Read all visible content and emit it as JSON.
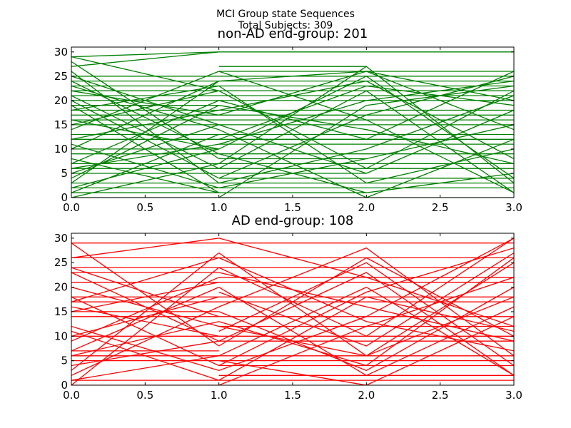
{
  "figure": {
    "suptitle_line1": "MCI Group state Sequences",
    "suptitle_line2": "Total Subjects: 309"
  },
  "chart_data": [
    {
      "type": "line",
      "title": "non-AD end-group: 201",
      "color": "#008000",
      "xlim": [
        0,
        3
      ],
      "ylim": [
        0,
        31
      ],
      "xticks": [
        "0.0",
        "0.5",
        "1.0",
        "1.5",
        "2.0",
        "2.5",
        "3.0"
      ],
      "xtick_values": [
        0,
        0.5,
        1,
        1.5,
        2,
        2.5,
        3
      ],
      "yticks": [
        "0",
        "5",
        "10",
        "15",
        "20",
        "25",
        "30"
      ],
      "ytick_values": [
        0,
        5,
        10,
        15,
        20,
        25,
        30
      ],
      "sequences": [
        [
          0,
          29,
          1,
          30
        ],
        [
          0,
          27,
          1,
          30
        ],
        [
          0,
          25,
          1,
          25
        ],
        [
          0,
          24,
          1,
          24
        ],
        [
          0,
          23,
          1,
          23
        ],
        [
          0,
          22,
          1,
          22
        ],
        [
          0,
          21,
          1,
          21
        ],
        [
          0,
          20,
          1,
          20
        ],
        [
          0,
          19,
          1,
          19
        ],
        [
          0,
          18,
          1,
          18
        ],
        [
          0,
          17,
          1,
          17
        ],
        [
          0,
          16,
          1,
          16
        ],
        [
          0,
          15,
          1,
          15
        ],
        [
          0,
          13,
          1,
          13
        ],
        [
          0,
          12,
          1,
          12
        ],
        [
          0,
          10,
          1,
          10
        ],
        [
          0,
          9,
          1,
          9
        ],
        [
          0,
          7,
          1,
          7
        ],
        [
          0,
          6,
          1,
          6
        ],
        [
          0,
          5,
          1,
          5
        ],
        [
          0,
          3,
          1,
          3
        ],
        [
          0,
          2,
          1,
          2
        ],
        [
          0,
          1,
          1,
          1
        ],
        [
          0,
          0,
          1,
          0
        ],
        [
          0,
          29,
          1,
          22
        ],
        [
          0,
          28,
          1,
          8
        ],
        [
          0,
          25,
          1,
          15
        ],
        [
          0,
          24,
          1,
          9
        ],
        [
          0,
          23,
          1,
          14
        ],
        [
          0,
          22,
          1,
          17
        ],
        [
          0,
          20,
          1,
          4
        ],
        [
          0,
          18,
          1,
          23
        ],
        [
          0,
          16,
          1,
          10
        ],
        [
          0,
          15,
          1,
          22
        ],
        [
          0,
          12,
          1,
          18
        ],
        [
          0,
          10,
          1,
          24
        ],
        [
          0,
          8,
          1,
          1
        ],
        [
          0,
          7,
          1,
          20
        ],
        [
          0,
          6,
          1,
          11
        ],
        [
          0,
          5,
          1,
          15
        ],
        [
          0,
          3,
          1,
          24
        ],
        [
          0,
          2,
          1,
          10
        ],
        [
          0,
          1,
          1,
          13
        ],
        [
          0,
          0,
          1,
          7
        ],
        [
          0,
          26,
          1,
          3
        ],
        [
          0,
          21,
          1,
          6
        ],
        [
          0,
          19,
          1,
          1
        ],
        [
          0,
          14,
          1,
          26
        ],
        [
          0,
          11,
          1,
          2
        ],
        [
          0,
          4,
          1,
          19
        ],
        [
          1,
          30,
          2,
          30,
          3,
          30
        ],
        [
          1,
          26,
          2,
          26,
          3,
          26
        ],
        [
          1,
          25,
          2,
          25,
          3,
          25
        ],
        [
          1,
          24,
          2,
          24,
          3,
          24
        ],
        [
          1,
          23,
          2,
          23,
          3,
          23
        ],
        [
          1,
          22,
          2,
          22,
          3,
          22
        ],
        [
          1,
          21,
          2,
          21,
          3,
          21
        ],
        [
          1,
          20,
          2,
          20,
          3,
          20
        ],
        [
          1,
          18,
          2,
          18,
          3,
          18
        ],
        [
          1,
          17,
          2,
          17,
          3,
          17
        ],
        [
          1,
          16,
          2,
          16,
          3,
          16
        ],
        [
          1,
          15,
          2,
          15,
          3,
          15
        ],
        [
          1,
          13,
          2,
          13,
          3,
          13
        ],
        [
          1,
          12,
          2,
          12,
          3,
          12
        ],
        [
          1,
          11,
          2,
          11,
          3,
          11
        ],
        [
          1,
          9,
          2,
          9,
          3,
          9
        ],
        [
          1,
          7,
          2,
          7,
          3,
          7
        ],
        [
          1,
          6,
          2,
          6,
          3,
          6
        ],
        [
          1,
          4,
          2,
          4,
          3,
          4
        ],
        [
          1,
          3,
          2,
          3,
          3,
          3
        ],
        [
          1,
          2,
          2,
          2,
          3,
          2
        ],
        [
          1,
          0,
          2,
          0,
          3,
          0
        ],
        [
          1,
          27,
          2,
          27
        ],
        [
          1,
          8,
          2,
          8
        ],
        [
          1,
          5,
          2,
          5
        ],
        [
          1,
          1,
          2,
          1
        ],
        [
          1,
          24,
          2,
          26,
          3,
          20
        ],
        [
          1,
          22,
          2,
          6,
          3,
          22
        ],
        [
          1,
          20,
          2,
          12,
          3,
          26
        ],
        [
          1,
          17,
          2,
          26,
          3,
          14
        ],
        [
          1,
          14,
          2,
          0,
          3,
          12
        ],
        [
          1,
          10,
          2,
          25,
          3,
          4
        ],
        [
          1,
          6,
          2,
          22,
          3,
          1
        ],
        [
          1,
          4,
          2,
          17,
          3,
          25
        ],
        [
          1,
          2,
          2,
          8,
          3,
          15
        ],
        [
          1,
          0,
          2,
          19,
          3,
          23
        ],
        [
          1,
          23,
          2,
          3,
          3,
          10
        ],
        [
          1,
          19,
          2,
          14,
          3,
          7
        ],
        [
          1,
          12,
          2,
          23,
          3,
          19
        ],
        [
          1,
          9,
          2,
          1,
          3,
          5
        ],
        [
          1,
          15,
          2,
          5,
          3,
          18
        ],
        [
          1,
          26,
          2,
          16,
          3,
          1
        ],
        [
          1,
          3,
          2,
          10,
          3,
          21
        ],
        [
          1,
          18,
          2,
          24,
          3,
          8
        ],
        [
          1,
          7,
          2,
          27,
          3,
          3
        ],
        [
          1,
          11,
          2,
          20,
          3,
          24
        ]
      ]
    },
    {
      "type": "line",
      "title": "AD end-group: 108",
      "color": "#ff0000",
      "xlim": [
        0,
        3
      ],
      "ylim": [
        0,
        31
      ],
      "xticks": [
        "0.0",
        "0.5",
        "1.0",
        "1.5",
        "2.0",
        "2.5",
        "3.0"
      ],
      "xtick_values": [
        0,
        0.5,
        1,
        1.5,
        2,
        2.5,
        3
      ],
      "yticks": [
        "0",
        "5",
        "10",
        "15",
        "20",
        "25",
        "30"
      ],
      "ytick_values": [
        0,
        5,
        10,
        15,
        20,
        25,
        30
      ],
      "sequences": [
        [
          0,
          29,
          1,
          29
        ],
        [
          0,
          26,
          1,
          26
        ],
        [
          0,
          24,
          1,
          24
        ],
        [
          0,
          23,
          1,
          23
        ],
        [
          0,
          21,
          1,
          21
        ],
        [
          0,
          18,
          1,
          18
        ],
        [
          0,
          17,
          1,
          17
        ],
        [
          0,
          15,
          1,
          15
        ],
        [
          0,
          14,
          1,
          14
        ],
        [
          0,
          10,
          1,
          10
        ],
        [
          0,
          7,
          1,
          7
        ],
        [
          0,
          6,
          1,
          6
        ],
        [
          0,
          5,
          1,
          5
        ],
        [
          0,
          1,
          1,
          1
        ],
        [
          0,
          0,
          1,
          0
        ],
        [
          0,
          29,
          1,
          8
        ],
        [
          0,
          26,
          1,
          30
        ],
        [
          0,
          24,
          1,
          14
        ],
        [
          0,
          23,
          1,
          9
        ],
        [
          0,
          18,
          1,
          4
        ],
        [
          0,
          17,
          1,
          26
        ],
        [
          0,
          16,
          1,
          10
        ],
        [
          0,
          15,
          1,
          21
        ],
        [
          0,
          12,
          1,
          3
        ],
        [
          0,
          10,
          1,
          18
        ],
        [
          0,
          7,
          1,
          20
        ],
        [
          0,
          6,
          1,
          13
        ],
        [
          0,
          2,
          1,
          16
        ],
        [
          0,
          1,
          1,
          6
        ],
        [
          0,
          0,
          1,
          24
        ],
        [
          0,
          20,
          1,
          12
        ],
        [
          0,
          11,
          1,
          1
        ],
        [
          0,
          9,
          1,
          22
        ],
        [
          0,
          4,
          1,
          9
        ],
        [
          0,
          3,
          1,
          27
        ],
        [
          1,
          29,
          2,
          29,
          3,
          29
        ],
        [
          1,
          26,
          2,
          26,
          3,
          26
        ],
        [
          1,
          24,
          2,
          24,
          3,
          24
        ],
        [
          1,
          22,
          2,
          22,
          3,
          22
        ],
        [
          1,
          21,
          2,
          21,
          3,
          21
        ],
        [
          1,
          18,
          2,
          18,
          3,
          18
        ],
        [
          1,
          17,
          2,
          17,
          3,
          17
        ],
        [
          1,
          14,
          2,
          14,
          3,
          14
        ],
        [
          1,
          12,
          2,
          12,
          3,
          12
        ],
        [
          1,
          10,
          2,
          10,
          3,
          10
        ],
        [
          1,
          9,
          2,
          9,
          3,
          9
        ],
        [
          1,
          6,
          2,
          6,
          3,
          6
        ],
        [
          1,
          5,
          2,
          5,
          3,
          5
        ],
        [
          1,
          4,
          2,
          4,
          3,
          4
        ],
        [
          1,
          2,
          2,
          2,
          3,
          2
        ],
        [
          1,
          1,
          2,
          1,
          3,
          1
        ],
        [
          1,
          30,
          2,
          22,
          3,
          12
        ],
        [
          1,
          24,
          2,
          10,
          3,
          30
        ],
        [
          1,
          20,
          2,
          2,
          3,
          16
        ],
        [
          1,
          16,
          2,
          28,
          3,
          6
        ],
        [
          1,
          13,
          2,
          4,
          3,
          26
        ],
        [
          1,
          8,
          2,
          26,
          3,
          10
        ],
        [
          1,
          6,
          2,
          20,
          3,
          2
        ],
        [
          1,
          3,
          2,
          14,
          3,
          30
        ],
        [
          1,
          0,
          2,
          12,
          3,
          22
        ],
        [
          1,
          27,
          2,
          6,
          3,
          18
        ],
        [
          1,
          23,
          2,
          16,
          3,
          9
        ],
        [
          1,
          11,
          2,
          25,
          3,
          4
        ],
        [
          1,
          19,
          2,
          8,
          3,
          27
        ],
        [
          1,
          5,
          2,
          0,
          3,
          14
        ],
        [
          1,
          15,
          2,
          3,
          3,
          20
        ],
        [
          1,
          1,
          2,
          18,
          3,
          11
        ],
        [
          1,
          9,
          2,
          23,
          3,
          2
        ],
        [
          1,
          26,
          2,
          13,
          3,
          7
        ],
        [
          1,
          4,
          2,
          19,
          3,
          28
        ],
        [
          1,
          12,
          2,
          6,
          3,
          25
        ]
      ]
    }
  ]
}
